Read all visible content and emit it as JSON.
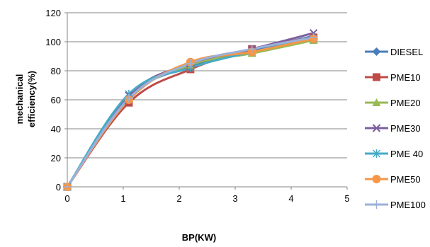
{
  "chart_data": {
    "type": "line",
    "title": "",
    "xlabel": "BP(KW)",
    "ylabel": "mechanical efficiency(%)",
    "ylabel_lines": [
      "mechanical",
      "efficiency(%)"
    ],
    "xlim": [
      0,
      5
    ],
    "ylim": [
      0,
      120
    ],
    "xticks": [
      0,
      1,
      2,
      3,
      4,
      5
    ],
    "yticks": [
      0,
      20,
      40,
      60,
      80,
      100,
      120
    ],
    "grid": "horizontal",
    "legend_position": "right",
    "series": [
      {
        "name": "DIESEL",
        "color": "#4a7ebb",
        "marker": "diamond",
        "x": [
          0,
          1.1,
          2.2,
          3.3,
          4.4
        ],
        "y": [
          0,
          62,
          83,
          94,
          104
        ]
      },
      {
        "name": "PME10",
        "color": "#be4b48",
        "marker": "square",
        "x": [
          0,
          1.1,
          2.2,
          3.3,
          4.4
        ],
        "y": [
          0,
          58,
          81,
          95,
          103
        ]
      },
      {
        "name": "PME20",
        "color": "#98b954",
        "marker": "triangle",
        "x": [
          0,
          1.1,
          2.2,
          3.3,
          4.4
        ],
        "y": [
          0,
          61,
          84,
          92,
          101
        ]
      },
      {
        "name": "PME30",
        "color": "#7d5fa0",
        "marker": "x",
        "x": [
          0,
          1.1,
          2.2,
          3.3,
          4.4
        ],
        "y": [
          0,
          63,
          85,
          95,
          106
        ]
      },
      {
        "name": "PME 40",
        "color": "#46aac5",
        "marker": "asterisk",
        "x": [
          0,
          1.1,
          2.2,
          3.3,
          4.4
        ],
        "y": [
          0,
          64,
          82,
          93,
          102
        ]
      },
      {
        "name": "PME50",
        "color": "#f79646",
        "marker": "circle",
        "x": [
          0,
          1.1,
          2.2,
          3.3,
          4.4
        ],
        "y": [
          0,
          60,
          86,
          93,
          102
        ]
      },
      {
        "name": "PME100",
        "color": "#9bb1d9",
        "marker": "plus",
        "x": [
          0,
          1.1,
          2.2,
          3.3,
          4.4
        ],
        "y": [
          0,
          61,
          85,
          95,
          103
        ]
      }
    ]
  }
}
